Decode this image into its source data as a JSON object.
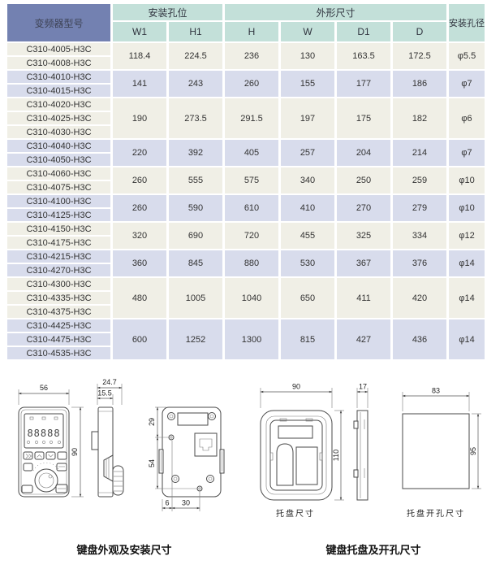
{
  "table": {
    "header": {
      "model": "变频器型号",
      "mounting_holes": "安装孔位",
      "outline_dims": "外形尺寸",
      "hole_diameter": "安装孔径",
      "sub": [
        "W1",
        "H1",
        "H",
        "W",
        "D1",
        "D"
      ]
    },
    "groups": [
      {
        "models": [
          "C310-4005-H3C",
          "C310-4008-H3C"
        ],
        "values": [
          "118.4",
          "224.5",
          "236",
          "130",
          "163.5",
          "172.5",
          "φ5.5"
        ]
      },
      {
        "models": [
          "C310-4010-H3C",
          "C310-4015-H3C"
        ],
        "values": [
          "141",
          "243",
          "260",
          "155",
          "177",
          "186",
          "φ7"
        ]
      },
      {
        "models": [
          "C310-4020-H3C",
          "C310-4025-H3C",
          "C310-4030-H3C"
        ],
        "values": [
          "190",
          "273.5",
          "291.5",
          "197",
          "175",
          "182",
          "φ6"
        ]
      },
      {
        "models": [
          "C310-4040-H3C",
          "C310-4050-H3C"
        ],
        "values": [
          "220",
          "392",
          "405",
          "257",
          "204",
          "214",
          "φ7"
        ]
      },
      {
        "models": [
          "C310-4060-H3C",
          "C310-4075-H3C"
        ],
        "values": [
          "260",
          "555",
          "575",
          "340",
          "250",
          "259",
          "φ10"
        ]
      },
      {
        "models": [
          "C310-4100-H3C",
          "C310-4125-H3C"
        ],
        "values": [
          "260",
          "590",
          "610",
          "410",
          "270",
          "279",
          "φ10"
        ]
      },
      {
        "models": [
          "C310-4150-H3C",
          "C310-4175-H3C"
        ],
        "values": [
          "320",
          "690",
          "720",
          "455",
          "325",
          "334",
          "φ12"
        ]
      },
      {
        "models": [
          "C310-4215-H3C",
          "C310-4270-H3C"
        ],
        "values": [
          "360",
          "845",
          "880",
          "530",
          "367",
          "376",
          "φ14"
        ]
      },
      {
        "models": [
          "C310-4300-H3C",
          "C310-4335-H3C",
          "C310-4375-H3C"
        ],
        "values": [
          "480",
          "1005",
          "1040",
          "650",
          "411",
          "420",
          "φ14"
        ]
      },
      {
        "models": [
          "C310-4425-H3C",
          "C310-4475-H3C",
          "C310-4535-H3C"
        ],
        "values": [
          "600",
          "1252",
          "1300",
          "815",
          "427",
          "436",
          "φ14"
        ]
      }
    ]
  },
  "drawings": {
    "keypad_front": {
      "width": "56",
      "height": "90",
      "display_digits": "88888"
    },
    "keypad_side": {
      "total_depth": "24.7",
      "body_depth": "15.5"
    },
    "keypad_back": {
      "hole_top_offset": "29",
      "hole_spacing": "54",
      "bottom_offset": "6",
      "bottom_spacing": "30"
    },
    "tray_front": {
      "width": "90",
      "height": "110",
      "label": "托盘尺寸"
    },
    "tray_side": {
      "depth": "17"
    },
    "tray_cutout": {
      "width": "83",
      "height": "95",
      "label": "托盘开孔尺寸"
    },
    "caption_keypad": "键盘外观及安装尺寸",
    "caption_tray": "键盘托盘及开孔尺寸"
  },
  "colors": {
    "model_header_bg": "#7381b1",
    "header_bg": "#c3e0d9",
    "row_beige": "#f0efe6",
    "row_lavender": "#d8dcec"
  }
}
